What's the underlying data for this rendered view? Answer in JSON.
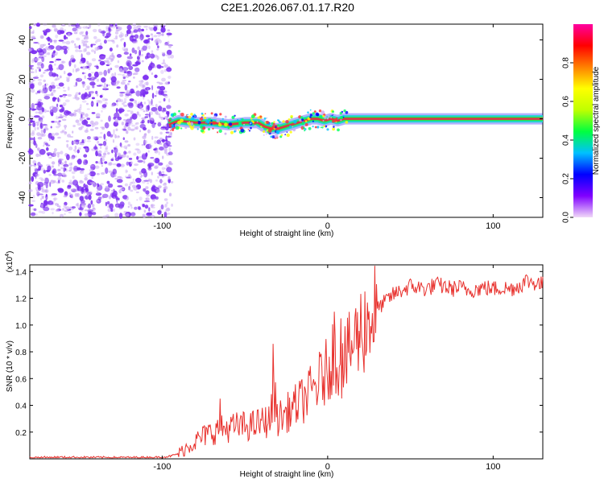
{
  "title": "C2E1.2026.067.01.17.R20",
  "colors": {
    "snr_line": "#e8322e",
    "spectrum_dots": "#7a2cf0",
    "trace_core": "#e0304a",
    "trace_edge": "#22d4d0"
  },
  "chart_data": [
    {
      "id": "spectrogram",
      "type": "heatmap",
      "title": "",
      "xlabel": "Height of straight line (km)",
      "ylabel": "Frequency (Hz)",
      "xlim": [
        -180,
        130
      ],
      "ylim": [
        -50,
        48
      ],
      "xticks": [
        -100,
        0,
        100
      ],
      "xtick_labels": [
        "-100",
        "0",
        "100"
      ],
      "yticks": [
        -40,
        -20,
        0,
        20,
        40
      ],
      "ytick_labels": [
        "-40",
        "-20",
        "0",
        "20",
        "40"
      ],
      "noise_region_km": [
        -180,
        -94
      ],
      "coherent_trace": {
        "x": [
          -96,
          -90,
          -80,
          -70,
          -60,
          -50,
          -42,
          -38,
          -34,
          -30,
          -26,
          -22,
          -18,
          -14,
          -10,
          -6,
          -2,
          2,
          6,
          10,
          20,
          40,
          60,
          80,
          100,
          120,
          130
        ],
        "y": [
          -3,
          -1,
          -2,
          -2,
          -3,
          -2,
          -2,
          -4,
          -5,
          -5,
          -4,
          -3,
          -2,
          -1,
          0,
          0,
          -1,
          0,
          -1,
          0,
          0,
          0,
          0,
          0,
          0,
          0,
          0
        ]
      },
      "colorbar": {
        "label": "Normalized spectral amplitude",
        "range": [
          0,
          1
        ],
        "ticks": [
          0.0,
          0.2,
          0.4,
          0.6,
          0.8
        ],
        "tick_labels": [
          "0.0",
          "0.2",
          "0.4",
          "0.6",
          "0.8"
        ],
        "colors": [
          "#f0d8f8",
          "#8000ff",
          "#0000ff",
          "#00c0ff",
          "#00ff40",
          "#c0ff00",
          "#ffff00",
          "#ff8000",
          "#ff0000",
          "#ff00a0"
        ]
      }
    },
    {
      "id": "snr",
      "type": "line",
      "title": "",
      "xlabel": "Height of straight line (km)",
      "ylabel": "SNR (10 * v/v)",
      "y_multiplier_label": "(x10",
      "y_multiplier_exp": "4",
      "xlim": [
        -180,
        130
      ],
      "ylim": [
        0,
        14500
      ],
      "xticks": [
        -100,
        0,
        100
      ],
      "xtick_labels": [
        "-100",
        "0",
        "100"
      ],
      "yticks": [
        2000,
        4000,
        6000,
        8000,
        10000,
        12000,
        14000
      ],
      "ytick_labels": [
        "0.2",
        "0.4",
        "0.6",
        "0.8",
        "1.0",
        "1.2",
        "1.4"
      ],
      "series": [
        {
          "name": "SNR",
          "x": [
            -180,
            -160,
            -140,
            -120,
            -100,
            -95,
            -90,
            -85,
            -80,
            -75,
            -70,
            -65,
            -60,
            -55,
            -50,
            -45,
            -40,
            -35,
            -32,
            -30,
            -25,
            -20,
            -15,
            -10,
            -5,
            0,
            3,
            5,
            8,
            10,
            12,
            15,
            20,
            25,
            30,
            35,
            40,
            45,
            50,
            55,
            60,
            65,
            70,
            75,
            80,
            85,
            90,
            95,
            100,
            105,
            110,
            115,
            120,
            125,
            130
          ],
          "y": [
            100,
            120,
            110,
            100,
            120,
            200,
            400,
            900,
            1300,
            1700,
            2000,
            2200,
            2300,
            2400,
            2450,
            2500,
            2700,
            2900,
            4500,
            3000,
            3400,
            3900,
            4400,
            5000,
            5800,
            6600,
            8000,
            7600,
            7200,
            7300,
            7600,
            8600,
            9600,
            10500,
            11200,
            11800,
            12300,
            12600,
            12900,
            12800,
            12700,
            13000,
            12900,
            12700,
            12800,
            12600,
            12700,
            12800,
            12700,
            12800,
            12700,
            12900,
            13300,
            13200,
            13000
          ]
        }
      ],
      "spikes": [
        {
          "x": -65,
          "y": 4500
        },
        {
          "x": -33,
          "y": 8600
        },
        {
          "x": 4,
          "y": 11000
        },
        {
          "x": 8,
          "y": 10500
        }
      ]
    }
  ]
}
